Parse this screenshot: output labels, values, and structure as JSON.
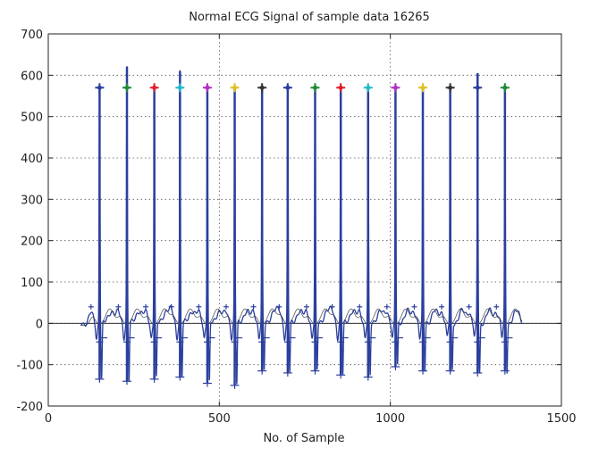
{
  "chart_data": {
    "type": "line",
    "title": "Normal ECG Signal of sample data 16265",
    "xlabel": "No. of Sample",
    "ylabel": "",
    "xlim": [
      0,
      1500
    ],
    "ylim": [
      -200,
      700
    ],
    "xticks": [
      0,
      500,
      1000,
      1500
    ],
    "yticks": [
      -200,
      -100,
      0,
      100,
      200,
      300,
      400,
      500,
      600,
      700
    ],
    "grid": true,
    "baseline": 0,
    "beats": [
      {
        "x": 150,
        "peak": 570,
        "s": -135,
        "marker_color": "#2a3fa0"
      },
      {
        "x": 230,
        "peak": 620,
        "s": -140,
        "marker_color": "#1f8a3a"
      },
      {
        "x": 310,
        "peak": 575,
        "s": -135,
        "marker_color": "#e0202a"
      },
      {
        "x": 385,
        "peak": 610,
        "s": -130,
        "marker_color": "#20b8c8"
      },
      {
        "x": 465,
        "peak": 575,
        "s": -145,
        "marker_color": "#b030c0"
      },
      {
        "x": 545,
        "peak": 570,
        "s": -150,
        "marker_color": "#e0c020"
      },
      {
        "x": 625,
        "peak": 570,
        "s": -115,
        "marker_color": "#333333"
      },
      {
        "x": 700,
        "peak": 575,
        "s": -120,
        "marker_color": "#2a3fa0"
      },
      {
        "x": 780,
        "peak": 570,
        "s": -115,
        "marker_color": "#1f8a3a"
      },
      {
        "x": 855,
        "peak": 575,
        "s": -125,
        "marker_color": "#e0202a"
      },
      {
        "x": 935,
        "peak": 570,
        "s": -130,
        "marker_color": "#20b8c8"
      },
      {
        "x": 1015,
        "peak": 570,
        "s": -105,
        "marker_color": "#b030c0"
      },
      {
        "x": 1095,
        "peak": 570,
        "s": -115,
        "marker_color": "#e0c020"
      },
      {
        "x": 1175,
        "peak": 570,
        "s": -115,
        "marker_color": "#333333"
      },
      {
        "x": 1255,
        "peak": 605,
        "s": -120,
        "marker_color": "#2a3fa0"
      },
      {
        "x": 1335,
        "peak": 570,
        "s": -115,
        "marker_color": "#1f8a3a"
      }
    ],
    "colors": {
      "signal": "#2b3f9e",
      "baseline": "#333333",
      "grid": "#555555",
      "frame": "#222222"
    }
  }
}
